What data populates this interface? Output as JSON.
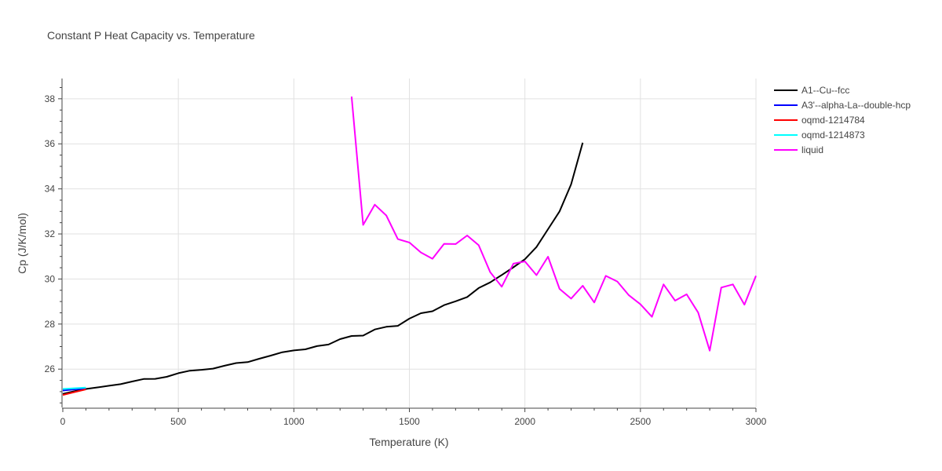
{
  "chart_data": {
    "type": "line",
    "title": "Constant P Heat Capacity vs. Temperature",
    "xlabel": "Temperature (K)",
    "ylabel": "Cp (J/K/mol)",
    "xlim": [
      0,
      3000
    ],
    "ylim": [
      24.3,
      38.9
    ],
    "xticks": [
      0,
      500,
      1000,
      1500,
      2000,
      2500,
      3000
    ],
    "yticks": [
      26,
      28,
      30,
      32,
      34,
      36,
      38
    ],
    "grid": true,
    "legend_position": "top-right",
    "series": [
      {
        "name": "A1--Cu--fcc",
        "color": "#000000",
        "x": [
          0,
          50,
          100,
          150,
          200,
          250,
          300,
          350,
          400,
          450,
          500,
          550,
          600,
          650,
          700,
          750,
          800,
          850,
          900,
          950,
          1000,
          1050,
          1100,
          1150,
          1200,
          1250,
          1300,
          1350,
          1400,
          1450,
          1500,
          1550,
          1600,
          1650,
          1700,
          1750,
          1800,
          1850,
          1900,
          1950,
          2000,
          2050,
          2100,
          2150,
          2200,
          2250
        ],
        "y": [
          24.9,
          25.02,
          25.12,
          25.19,
          25.26,
          25.33,
          25.45,
          25.56,
          25.57,
          25.66,
          25.82,
          25.93,
          25.97,
          26.02,
          26.15,
          26.27,
          26.31,
          26.46,
          26.6,
          26.75,
          26.83,
          26.88,
          27.02,
          27.09,
          27.33,
          27.47,
          27.49,
          27.76,
          27.88,
          27.92,
          28.24,
          28.48,
          28.57,
          28.84,
          29.01,
          29.2,
          29.6,
          29.85,
          30.18,
          30.52,
          30.88,
          31.42,
          32.21,
          33.0,
          34.2,
          36.05
        ]
      },
      {
        "name": "A3'--alpha-La--double-hcp",
        "color": "#0000ff",
        "x": [
          0,
          50,
          100
        ],
        "y": [
          25.05,
          25.1,
          25.13
        ]
      },
      {
        "name": "oqmd-1214784",
        "color": "#ff0000",
        "x": [
          0,
          50,
          100
        ],
        "y": [
          24.85,
          24.98,
          25.1
        ]
      },
      {
        "name": "oqmd-1214873",
        "color": "#00ffff",
        "x": [
          0,
          50,
          100
        ],
        "y": [
          25.12,
          25.15,
          25.18
        ]
      },
      {
        "name": "liquid",
        "color": "#ff00ff",
        "x": [
          1250,
          1300,
          1350,
          1400,
          1450,
          1500,
          1550,
          1600,
          1650,
          1700,
          1750,
          1800,
          1850,
          1900,
          1950,
          2000,
          2050,
          2100,
          2150,
          2200,
          2250,
          2300,
          2350,
          2400,
          2450,
          2500,
          2550,
          2600,
          2650,
          2700,
          2750,
          2800,
          2850,
          2900,
          2950,
          3000
        ],
        "y": [
          38.1,
          32.4,
          33.3,
          32.82,
          31.77,
          31.62,
          31.18,
          30.9,
          31.56,
          31.55,
          31.93,
          31.5,
          30.3,
          29.66,
          30.68,
          30.78,
          30.17,
          30.99,
          29.56,
          29.13,
          29.7,
          28.96,
          30.14,
          29.89,
          29.28,
          28.88,
          28.32,
          29.76,
          29.04,
          29.32,
          28.51,
          26.82,
          29.62,
          29.76,
          28.86,
          30.14
        ]
      }
    ]
  }
}
